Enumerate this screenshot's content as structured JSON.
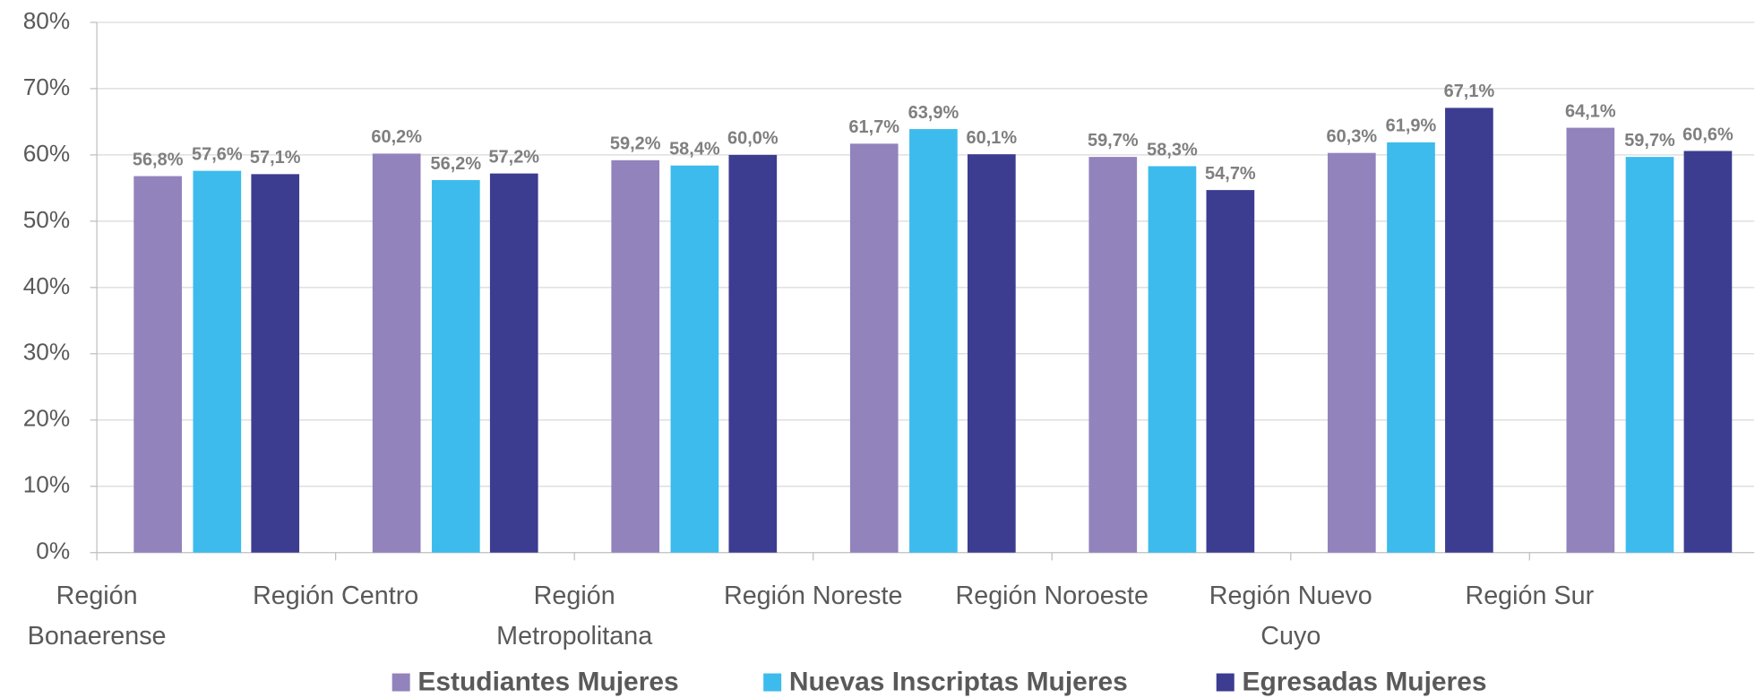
{
  "chart_data": {
    "type": "bar",
    "categories": [
      "Región Bonaerense",
      "Región Centro",
      "Región Metropolitana",
      "Región Noreste",
      "Región Noroeste",
      "Región Nuevo Cuyo",
      "Región Sur"
    ],
    "series": [
      {
        "name": "Estudiantes Mujeres",
        "color": "#9283bd",
        "values": [
          56.8,
          60.2,
          59.2,
          61.7,
          59.7,
          60.3,
          64.1
        ],
        "value_labels": [
          "56,8%",
          "60,2%",
          "59,2%",
          "61,7%",
          "59,7%",
          "60,3%",
          "64,1%"
        ]
      },
      {
        "name": "Nuevas Inscriptas Mujeres",
        "color": "#3dbbed",
        "values": [
          57.6,
          56.2,
          58.4,
          63.9,
          58.3,
          61.9,
          59.7
        ],
        "value_labels": [
          "57,6%",
          "56,2%",
          "58,4%",
          "63,9%",
          "58,3%",
          "61,9%",
          "59,7%"
        ]
      },
      {
        "name": "Egresadas Mujeres",
        "color": "#3c3c91",
        "values": [
          57.1,
          57.2,
          60.0,
          60.1,
          54.7,
          67.1,
          60.6
        ],
        "value_labels": [
          "57,1%",
          "57,2%",
          "60,0%",
          "60,1%",
          "54,7%",
          "67,1%",
          "60,6%"
        ]
      }
    ],
    "ylim": [
      0,
      80
    ],
    "yticks": [
      {
        "value": 0,
        "label": "0%"
      },
      {
        "value": 10,
        "label": "10%"
      },
      {
        "value": 20,
        "label": "20%"
      },
      {
        "value": 30,
        "label": "30%"
      },
      {
        "value": 40,
        "label": "40%"
      },
      {
        "value": 50,
        "label": "50%"
      },
      {
        "value": 60,
        "label": "60%"
      },
      {
        "value": 70,
        "label": "70%"
      },
      {
        "value": 80,
        "label": "80%"
      }
    ],
    "grid": true,
    "legend": "bottom"
  }
}
